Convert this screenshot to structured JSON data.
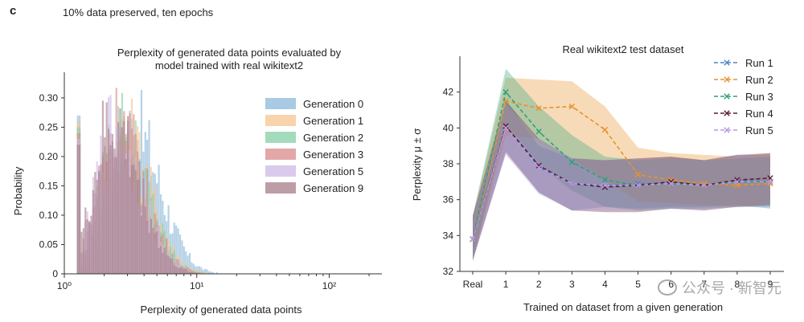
{
  "figure": {
    "panel_letter": "c",
    "caption": "10% data preserved, ten epochs",
    "watermark": "公众号 · 新智元"
  },
  "chart_data": [
    {
      "type": "histogram",
      "title": "Perplexity of generated data points evaluated by model trained with real wikitext2",
      "title_lines": [
        "Perplexity of generated data points evaluated by",
        "model trained with real wikitext2"
      ],
      "xlabel": "Perplexity of generated data points",
      "ylabel": "Probability",
      "xscale": "log",
      "xlim": [
        1,
        250
      ],
      "ylim": [
        0,
        0.33
      ],
      "xticks": [
        {
          "value": 1,
          "label": "10⁰"
        },
        {
          "value": 10,
          "label": "10¹"
        },
        {
          "value": 100,
          "label": "10²"
        }
      ],
      "yticks": [
        0,
        0.05,
        0.1,
        0.15,
        0.2,
        0.25,
        0.3
      ],
      "ytick_labels": [
        "0",
        "0.05",
        "0.10",
        "0.15",
        "0.20",
        "0.25",
        "0.30"
      ],
      "legend_position": "top-right",
      "series": [
        {
          "name": "Generation 0",
          "color": "#8bb8d9",
          "peak_x": 3.3,
          "peak_y": 0.3
        },
        {
          "name": "Generation 1",
          "color": "#f5c48f",
          "peak_x": 2.8,
          "peak_y": 0.29
        },
        {
          "name": "Generation 2",
          "color": "#86cfa6",
          "peak_x": 2.6,
          "peak_y": 0.3
        },
        {
          "name": "Generation 3",
          "color": "#d98a8a",
          "peak_x": 2.5,
          "peak_y": 0.31
        },
        {
          "name": "Generation 5",
          "color": "#cdb8e6",
          "peak_x": 2.4,
          "peak_y": 0.3
        },
        {
          "name": "Generation 9",
          "color": "#a77e8a",
          "peak_x": 2.3,
          "peak_y": 0.31
        }
      ]
    },
    {
      "type": "line",
      "title": "Real wikitext2 test dataset",
      "xlabel": "Trained on dataset from a given generation",
      "ylabel": "Perplexity μ ± σ",
      "categories": [
        "Real",
        "1",
        "2",
        "3",
        "4",
        "5",
        "6",
        "7",
        "8",
        "9"
      ],
      "ylim": [
        32,
        44
      ],
      "yticks": [
        32,
        34,
        36,
        38,
        40,
        42
      ],
      "legend_position": "top-right",
      "series": [
        {
          "name": "Run 1",
          "color": "#4a86c5",
          "values": [
            33.8,
            40.1,
            37.8,
            36.9,
            36.8,
            36.9,
            36.9,
            36.8,
            37.1,
            37.0
          ],
          "lower": [
            32.6,
            38.7,
            36.4,
            35.4,
            35.6,
            35.5,
            35.6,
            35.6,
            35.7,
            35.5
          ],
          "upper": [
            35.1,
            41.6,
            39.0,
            38.3,
            38.2,
            38.3,
            38.4,
            38.2,
            38.5,
            38.5
          ]
        },
        {
          "name": "Run 2",
          "color": "#e8922b",
          "values": [
            33.8,
            41.5,
            41.1,
            41.2,
            39.9,
            37.4,
            37.1,
            36.9,
            36.8,
            36.9
          ],
          "lower": [
            32.6,
            39.6,
            39.4,
            38.3,
            37.1,
            35.9,
            35.8,
            35.7,
            35.6,
            35.7
          ],
          "upper": [
            35.1,
            42.8,
            42.7,
            42.6,
            41.2,
            38.9,
            38.6,
            38.5,
            38.4,
            38.6
          ]
        },
        {
          "name": "Run 3",
          "color": "#2ea07a",
          "values": [
            33.8,
            42.0,
            39.8,
            38.1,
            37.1,
            36.8,
            36.9,
            36.8,
            37.0,
            37.0
          ],
          "lower": [
            32.6,
            40.2,
            38.0,
            36.5,
            35.6,
            35.4,
            35.5,
            35.5,
            35.6,
            35.6
          ],
          "upper": [
            35.1,
            43.3,
            41.2,
            39.6,
            38.4,
            38.2,
            38.3,
            38.2,
            38.3,
            38.4
          ]
        },
        {
          "name": "Run 4",
          "color": "#5b1e35",
          "values": [
            33.8,
            40.1,
            37.9,
            36.9,
            36.7,
            36.8,
            37.0,
            36.8,
            37.1,
            37.2
          ],
          "lower": [
            32.6,
            38.6,
            36.4,
            35.4,
            35.3,
            35.3,
            35.5,
            35.4,
            35.6,
            35.7
          ],
          "upper": [
            35.1,
            41.5,
            39.4,
            38.3,
            38.2,
            38.3,
            38.4,
            38.2,
            38.5,
            38.6
          ]
        },
        {
          "name": "Run 5",
          "color": "#b89be0",
          "values": [
            33.8,
            40.0,
            37.8,
            36.9,
            36.8,
            36.8,
            36.9,
            36.8,
            37.0,
            37.0
          ],
          "lower": [
            32.6,
            38.5,
            36.3,
            35.4,
            35.4,
            35.4,
            35.5,
            35.4,
            35.6,
            35.6
          ],
          "upper": [
            35.1,
            41.4,
            39.3,
            38.3,
            38.2,
            38.3,
            38.3,
            38.2,
            38.4,
            38.5
          ]
        }
      ]
    }
  ]
}
